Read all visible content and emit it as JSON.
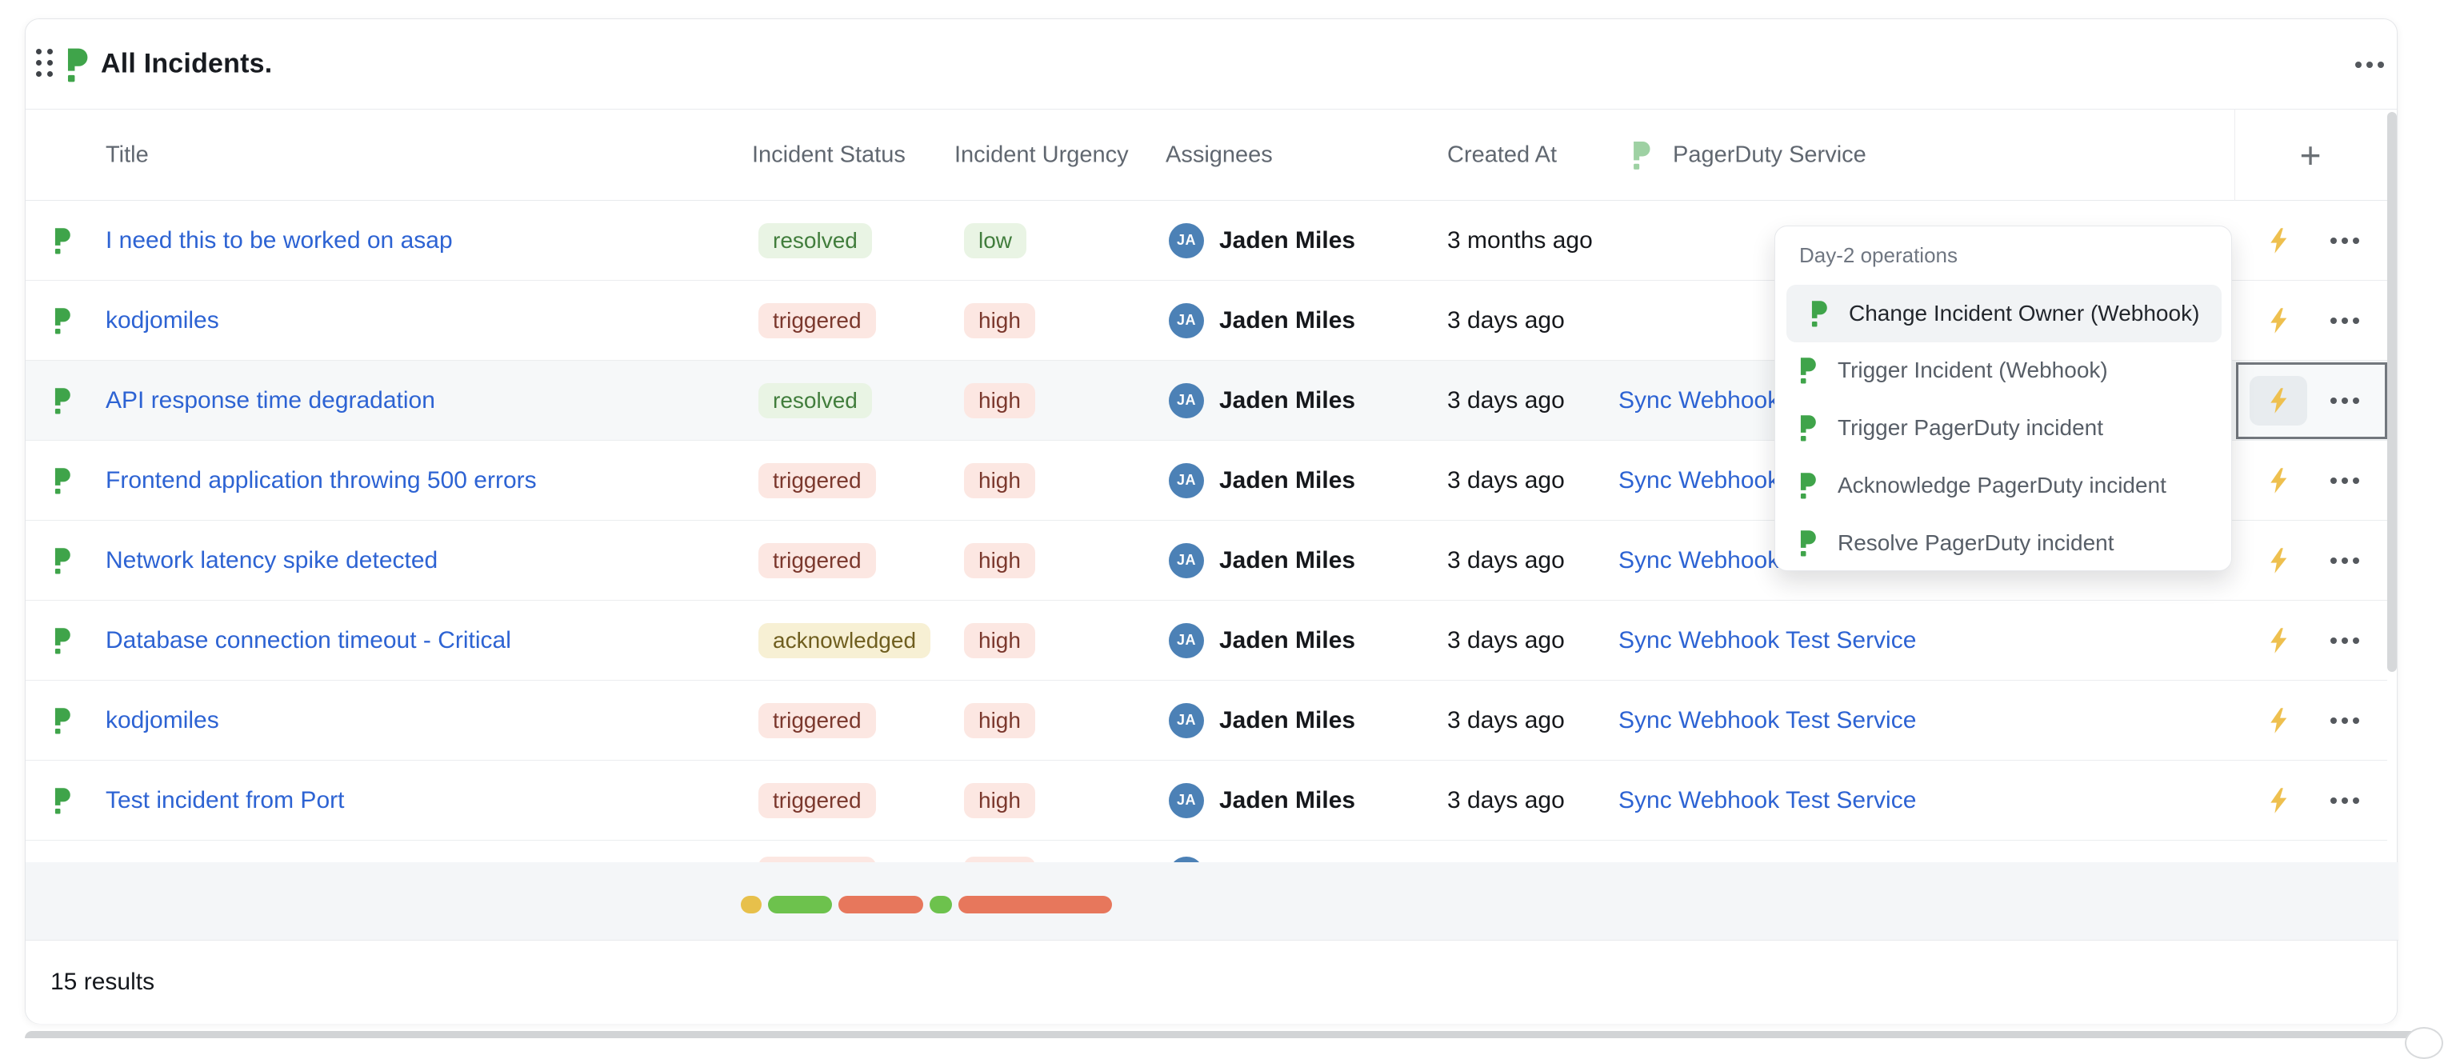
{
  "widget": {
    "title": "All Incidents.",
    "plus_label": "+"
  },
  "columns": {
    "title": "Title",
    "status": "Incident Status",
    "urgency": "Incident Urgency",
    "assignees": "Assignees",
    "created_at": "Created At",
    "service": "PagerDuty Service"
  },
  "rows": [
    {
      "title": "I need this to be worked on asap",
      "status": "resolved",
      "urgency": "low",
      "assignee_initials": "JA",
      "assignee_name": "Jaden Miles",
      "created_at": "3 months ago",
      "service": ""
    },
    {
      "title": "kodjomiles",
      "status": "triggered",
      "urgency": "high",
      "assignee_initials": "JA",
      "assignee_name": "Jaden Miles",
      "created_at": "3 days ago",
      "service": ""
    },
    {
      "title": "API response time degradation",
      "status": "resolved",
      "urgency": "high",
      "assignee_initials": "JA",
      "assignee_name": "Jaden Miles",
      "created_at": "3 days ago",
      "service": "Sync Webhook Test Service"
    },
    {
      "title": "Frontend application throwing 500 errors",
      "status": "triggered",
      "urgency": "high",
      "assignee_initials": "JA",
      "assignee_name": "Jaden Miles",
      "created_at": "3 days ago",
      "service": "Sync Webhook Test Service"
    },
    {
      "title": "Network latency spike detected",
      "status": "triggered",
      "urgency": "high",
      "assignee_initials": "JA",
      "assignee_name": "Jaden Miles",
      "created_at": "3 days ago",
      "service": "Sync Webhook Test Service"
    },
    {
      "title": "Database connection timeout - Critical",
      "status": "acknowledged",
      "urgency": "high",
      "assignee_initials": "JA",
      "assignee_name": "Jaden Miles",
      "created_at": "3 days ago",
      "service": "Sync Webhook Test Service"
    },
    {
      "title": "kodjomiles",
      "status": "triggered",
      "urgency": "high",
      "assignee_initials": "JA",
      "assignee_name": "Jaden Miles",
      "created_at": "3 days ago",
      "service": "Sync Webhook Test Service"
    },
    {
      "title": "Test incident from Port",
      "status": "triggered",
      "urgency": "high",
      "assignee_initials": "JA",
      "assignee_name": "Jaden Miles",
      "created_at": "3 days ago",
      "service": "Sync Webhook Test Service"
    },
    {
      "title": "",
      "status": "triggered",
      "urgency": "high",
      "assignee_initials": "JA",
      "assignee_name": "",
      "created_at": "",
      "service": ""
    }
  ],
  "context_menu": {
    "group_label": "Day-2 operations",
    "items": [
      {
        "label": "Change Incident Owner (Webhook)"
      },
      {
        "label": "Trigger Incident (Webhook)"
      },
      {
        "label": "Trigger PagerDuty incident"
      },
      {
        "label": "Acknowledge PagerDuty incident"
      },
      {
        "label": "Resolve PagerDuty incident"
      }
    ]
  },
  "footer": {
    "results_text": "15 results"
  },
  "skeleton_bars": [
    {
      "color": "yellow",
      "width": 26
    },
    {
      "color": "green",
      "width": 80
    },
    {
      "color": "red",
      "width": 106
    },
    {
      "color": "green",
      "width": 28
    },
    {
      "color": "red",
      "width": 192
    }
  ],
  "colors": {
    "pagerduty_green": "#3fa44a",
    "link_blue": "#2d63d3",
    "bolt_yellow": "#eec04f",
    "avatar_blue": "#4c81b6",
    "pill_resolved_bg": "#e9f4e4",
    "pill_resolved_text": "#417d3c",
    "pill_triggered_bg": "#fce7e2",
    "pill_triggered_text": "#7b382d",
    "pill_acknowledged_bg": "#f7f0d4",
    "pill_acknowledged_text": "#6f5e1f",
    "skeleton_yellow": "#e7c04b",
    "skeleton_green": "#6dc24d",
    "skeleton_red": "#e7775c",
    "band_bg": "#f4f6f8"
  }
}
